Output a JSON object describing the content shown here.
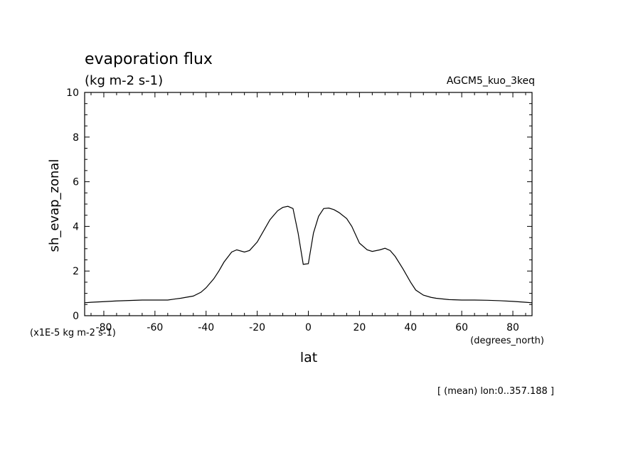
{
  "chart_data": {
    "type": "line",
    "title": "evaporation flux",
    "subtitle": "(kg m-2 s-1)",
    "model_label": "AGCM5_kuo_3keq",
    "xlabel": "lat",
    "ylabel": "sh_evap_zonal",
    "x_units": "(degrees_north)",
    "y_scale_note": "(x1E-5 kg m-2 s-1)",
    "footer_note": "[ (mean) lon:0..357.188 ]",
    "xlim": [
      -87.5,
      87.5
    ],
    "ylim": [
      0,
      10
    ],
    "x_ticks": [
      -80,
      -60,
      -40,
      -20,
      0,
      20,
      40,
      60,
      80
    ],
    "x_tick_labels": [
      "-80",
      "-60",
      "-40",
      "-20",
      "0",
      "20",
      "40",
      "60",
      "80"
    ],
    "y_ticks": [
      0,
      2,
      4,
      6,
      8,
      10
    ],
    "y_tick_labels": [
      "0",
      "2",
      "4",
      "6",
      "8",
      "10"
    ],
    "grid": false,
    "line_color": "#000000",
    "series": [
      {
        "x": [
          -87.5,
          -85,
          -80,
          -75,
          -70,
          -65,
          -60,
          -55,
          -52,
          -50,
          -48,
          -45,
          -42,
          -40,
          -37,
          -35,
          -33,
          -31,
          -30,
          -28,
          -25,
          -23,
          -20,
          -17,
          -15,
          -12,
          -10,
          -8,
          -6,
          -4,
          -2,
          0,
          2,
          4,
          6,
          8,
          10,
          12,
          15,
          17,
          20,
          23,
          25,
          28,
          30,
          32,
          34,
          37,
          40,
          42,
          45,
          48,
          50,
          55,
          60,
          65,
          70,
          75,
          80,
          85,
          87.5
        ],
        "y": [
          0.58,
          0.6,
          0.63,
          0.66,
          0.68,
          0.7,
          0.7,
          0.7,
          0.75,
          0.78,
          0.82,
          0.88,
          1.05,
          1.25,
          1.65,
          2.0,
          2.4,
          2.7,
          2.85,
          2.95,
          2.85,
          2.92,
          3.3,
          3.9,
          4.3,
          4.7,
          4.85,
          4.9,
          4.8,
          3.7,
          2.3,
          2.33,
          3.7,
          4.45,
          4.8,
          4.82,
          4.75,
          4.62,
          4.35,
          4.0,
          3.25,
          2.95,
          2.88,
          2.95,
          3.02,
          2.92,
          2.65,
          2.1,
          1.5,
          1.15,
          0.92,
          0.82,
          0.78,
          0.72,
          0.7,
          0.7,
          0.69,
          0.67,
          0.64,
          0.6,
          0.58
        ]
      }
    ]
  }
}
